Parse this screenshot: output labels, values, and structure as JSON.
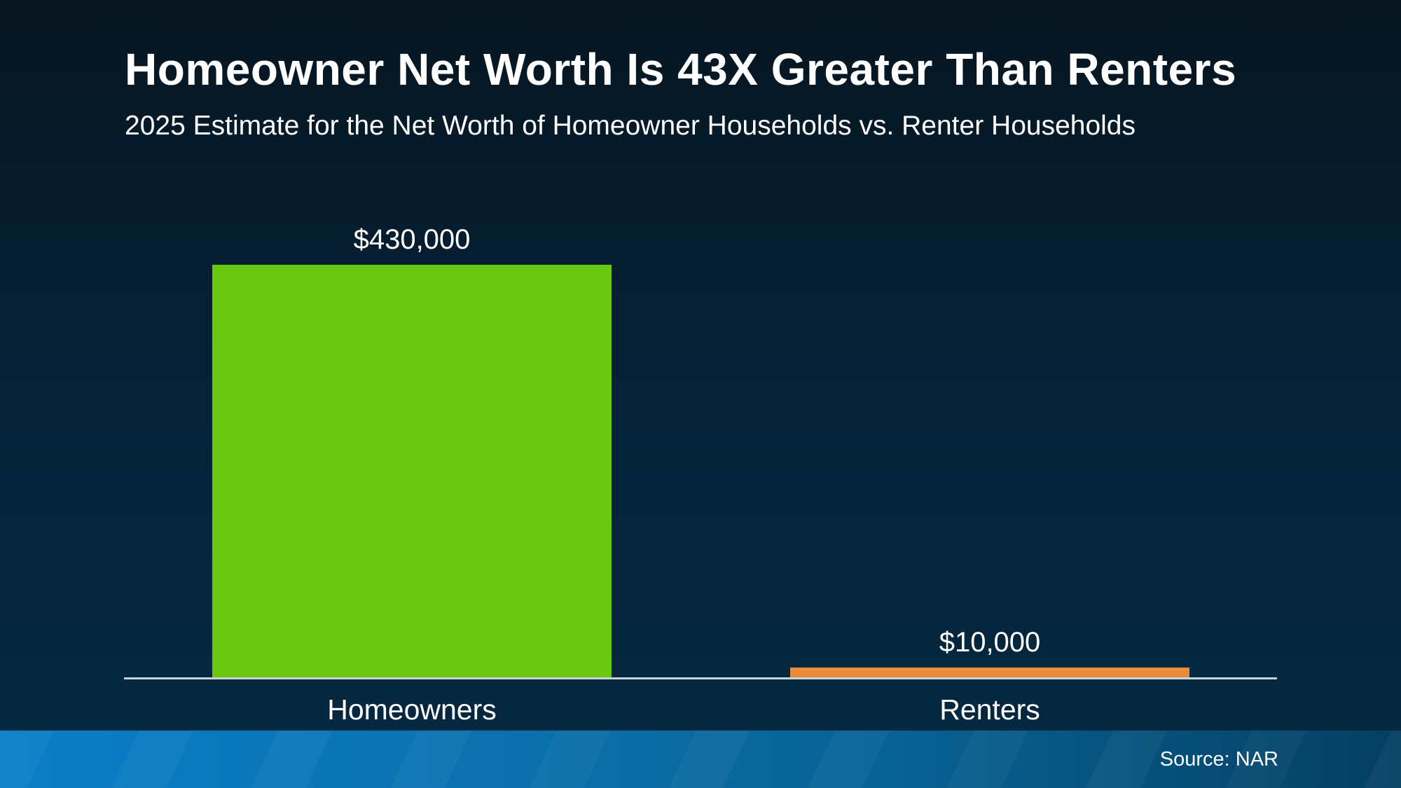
{
  "slide": {
    "title": "Homeowner Net Worth Is 43X Greater Than Renters",
    "subtitle": "2025 Estimate for the Net Worth of Homeowner Households vs. Renter Households",
    "source": "Source: NAR"
  },
  "chart_data": {
    "type": "bar",
    "title": "Homeowner Net Worth Is 43X Greater Than Renters",
    "subtitle": "2025 Estimate for the Net Worth of Homeowner Households vs. Renter Households",
    "categories": [
      "Homeowners",
      "Renters"
    ],
    "values": [
      430000,
      10000
    ],
    "value_labels": [
      "$430,000",
      "$10,000"
    ],
    "bar_colors": [
      "#6bc811",
      "#e98b3c"
    ],
    "ylim": [
      0,
      430000
    ],
    "grid": false,
    "legend": false,
    "xlabel": "",
    "ylabel": "",
    "axis_line_color": "#ccd1d8",
    "annotation_source": "Source: NAR"
  },
  "colors": {
    "background_top": "#071621",
    "background_bottom": "#052a41",
    "text": "#ffffff",
    "homeowners_bar": "#6bc811",
    "renters_bar": "#e98b3c",
    "footer_left": "#0a7ec8",
    "footer_right": "#053f63"
  }
}
